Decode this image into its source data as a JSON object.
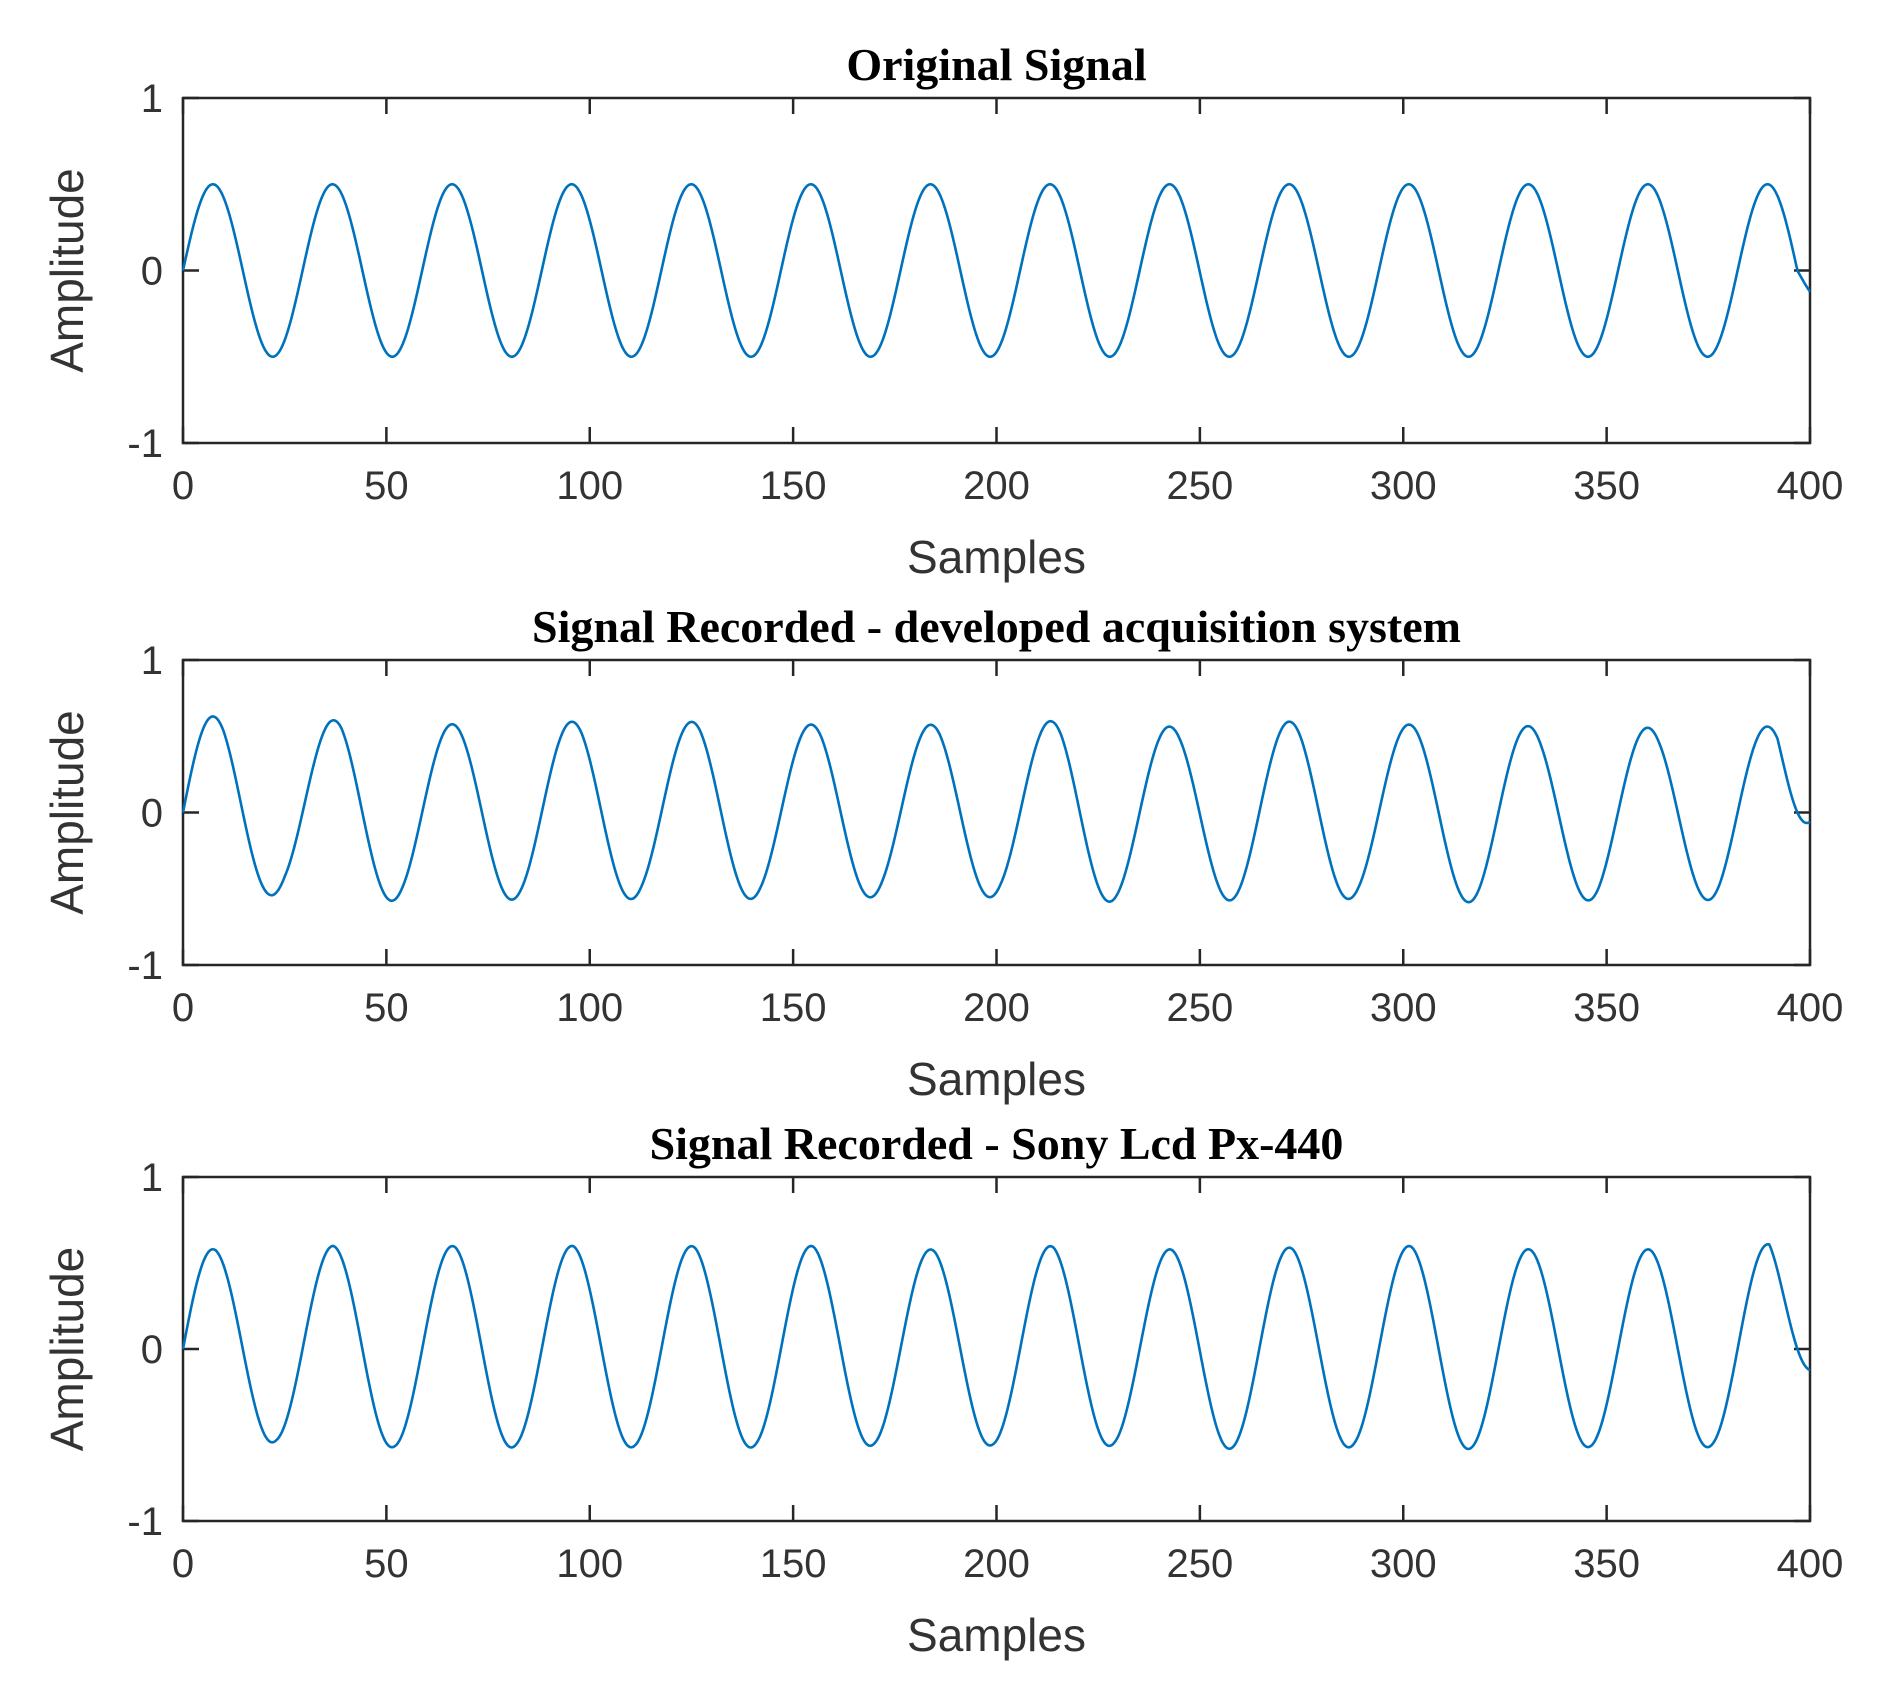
{
  "chart_data": [
    {
      "type": "line",
      "title": "Original Signal",
      "xlabel": "Samples",
      "ylabel": "Amplitude",
      "xlim": [
        0,
        400
      ],
      "ylim": [
        -1,
        1
      ],
      "xticks": [
        "0",
        "50",
        "100",
        "150",
        "200",
        "250",
        "300",
        "350",
        "400"
      ],
      "yticks": [
        "-1",
        "0",
        "1"
      ],
      "grid": false,
      "series": [
        {
          "color": "#0072BD",
          "amplitude": 0.5,
          "period_samples": 29.4,
          "phase_start": 0,
          "x": [
            0,
            7.4,
            14.7,
            22.1,
            29.4,
            36.8,
            44.1,
            51.5,
            58.8,
            66.2,
            73.5,
            80.9,
            88.2,
            95.6,
            102.9,
            110.3,
            117.6,
            125,
            132.3,
            139.7,
            147,
            154.4,
            161.7,
            169.1,
            176.4,
            183.8,
            191.1,
            198.5,
            205.8,
            213.2,
            220.5,
            227.9,
            235.2,
            242.6,
            249.9,
            257.3,
            264.6,
            272,
            279.3,
            286.7,
            294,
            301.4,
            308.7,
            316.1,
            323.4,
            330.8,
            338.1,
            345.5,
            352.8,
            360.2,
            367.5,
            374.9,
            382.2,
            389.6,
            396.9,
            400
          ],
          "y": [
            0,
            0.5,
            0,
            -0.5,
            0,
            0.5,
            0,
            -0.5,
            0,
            0.5,
            0,
            -0.5,
            0,
            0.5,
            0,
            -0.5,
            0,
            0.5,
            0,
            -0.5,
            0,
            0.5,
            0,
            -0.5,
            0,
            0.5,
            0,
            -0.5,
            0,
            0.5,
            0,
            -0.5,
            0,
            0.5,
            0,
            -0.5,
            0,
            0.5,
            0,
            -0.5,
            0,
            0.5,
            0,
            -0.5,
            0,
            0.5,
            0,
            -0.5,
            0,
            0.5,
            0,
            -0.5,
            0,
            0.5,
            0,
            -0.2
          ]
        }
      ]
    },
    {
      "type": "line",
      "title": "Signal Recorded - developed acquisition system",
      "xlabel": "Samples",
      "ylabel": "Amplitude",
      "xlim": [
        0,
        400
      ],
      "ylim": [
        -1,
        1
      ],
      "xticks": [
        "0",
        "50",
        "100",
        "150",
        "200",
        "250",
        "300",
        "350",
        "400"
      ],
      "yticks": [
        "-1",
        "0",
        "1"
      ],
      "grid": false,
      "series": [
        {
          "color": "#0072BD",
          "amplitude": 0.58,
          "period_samples": 29.4,
          "phase_start": 0,
          "x": [
            0,
            10,
            25,
            39,
            54,
            68,
            83,
            98,
            113,
            127,
            142,
            157,
            172,
            186,
            201,
            216,
            230,
            245,
            260,
            275,
            289,
            304,
            319,
            334,
            348,
            363,
            378,
            392,
            400
          ],
          "y": [
            0,
            0.63,
            -0.52,
            0.62,
            -0.57,
            0.58,
            -0.57,
            0.6,
            -0.56,
            0.6,
            -0.56,
            0.58,
            -0.55,
            0.58,
            -0.55,
            0.61,
            -0.58,
            0.56,
            -0.58,
            0.6,
            -0.56,
            0.58,
            -0.59,
            0.56,
            -0.58,
            0.55,
            -0.58,
            0.56,
            -0.1
          ]
        }
      ]
    },
    {
      "type": "line",
      "title": "Signal Recorded - Sony Lcd Px-440",
      "xlabel": "Samples",
      "ylabel": "Amplitude",
      "xlim": [
        0,
        400
      ],
      "ylim": [
        -1,
        1
      ],
      "xticks": [
        "0",
        "50",
        "100",
        "150",
        "200",
        "250",
        "300",
        "350",
        "400"
      ],
      "yticks": [
        "-1",
        "0",
        "1"
      ],
      "grid": false,
      "series": [
        {
          "color": "#0072BD",
          "amplitude": 0.58,
          "period_samples": 29.4,
          "phase_start": 0,
          "x": [
            0,
            8,
            23,
            37,
            52,
            67,
            82,
            96,
            111,
            126,
            141,
            155,
            170,
            185,
            199,
            214,
            229,
            243,
            258,
            273,
            288,
            302,
            317,
            332,
            346,
            361,
            376,
            390,
            400
          ],
          "y": [
            0,
            0.58,
            -0.54,
            0.6,
            -0.57,
            0.6,
            -0.57,
            0.6,
            -0.57,
            0.6,
            -0.57,
            0.6,
            -0.56,
            0.58,
            -0.56,
            0.6,
            -0.56,
            0.58,
            -0.58,
            0.59,
            -0.57,
            0.6,
            -0.58,
            0.58,
            -0.57,
            0.58,
            -0.57,
            0.61,
            -0.2
          ]
        }
      ]
    }
  ]
}
